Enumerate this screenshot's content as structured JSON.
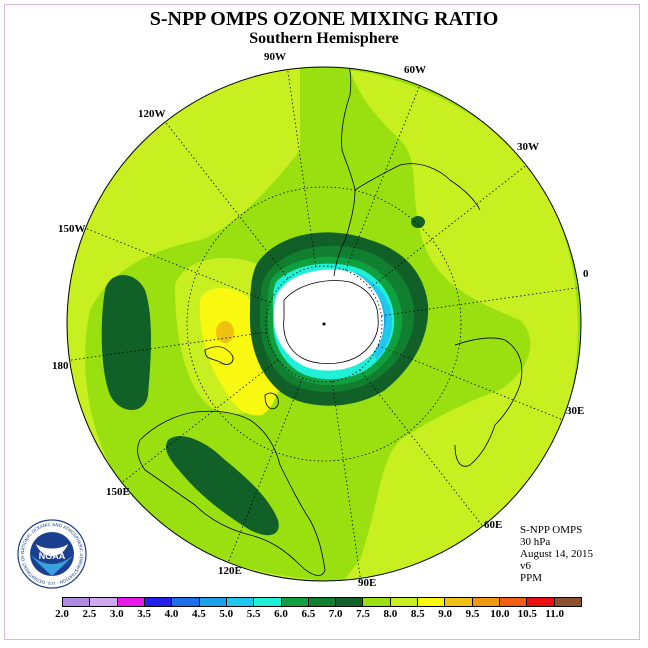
{
  "title": "S-NPP OMPS OZONE MIXING RATIO",
  "subtitle": "Southern Hemisphere",
  "longitude_labels": {
    "lon_90w": "90W",
    "lon_60w": "60W",
    "lon_30w": "30W",
    "lon_0": "0",
    "lon_30e": "30E",
    "lon_60e": "60E",
    "lon_90e": "90E",
    "lon_120e": "120E",
    "lon_150e": "150E",
    "lon_180": "180",
    "lon_150w": "150W",
    "lon_120w": "120W"
  },
  "info": {
    "instrument": "S-NPP OMPS",
    "level": "30 hPa",
    "date": "August 14, 2015",
    "version": "v6",
    "units": "PPM"
  },
  "logo": {
    "acronym": "NOAA",
    "ring_text": "NATIONAL OCEANIC AND ATMOSPHERIC ADMINISTRATION · U.S. DEPARTMENT OF COMMERCE"
  },
  "colorbar": {
    "ticks": [
      "2.0",
      "2.5",
      "3.0",
      "3.5",
      "4.0",
      "4.5",
      "5.0",
      "5.5",
      "6.0",
      "6.5",
      "7.0",
      "7.5",
      "8.0",
      "8.5",
      "9.0",
      "9.5",
      "10.0",
      "10.5",
      "11.0"
    ],
    "colors": [
      "#b08ae0",
      "#d0a8f0",
      "#e818e8",
      "#2020e8",
      "#1a70e8",
      "#18a0e8",
      "#20c8f0",
      "#20f0d8",
      "#10a040",
      "#108030",
      "#106028",
      "#9ae010",
      "#c8f020",
      "#f8f810",
      "#f0c010",
      "#f09810",
      "#f06010",
      "#e81010",
      "#8a5030"
    ]
  },
  "field_colors": {
    "background_7_5": "#9ae010",
    "ppm_8_0": "#c8f020",
    "ppm_8_5": "#f8f810",
    "ppm_9_0": "#f0c010",
    "ppm_7_0": "#106028",
    "ppm_6_5": "#108030",
    "ppm_6_0": "#10a040",
    "ppm_5_5": "#20f0d8",
    "ppm_5_0": "#20c8f0",
    "ppm_4_5": "#18a0e8",
    "no_data": "#ffffff"
  }
}
